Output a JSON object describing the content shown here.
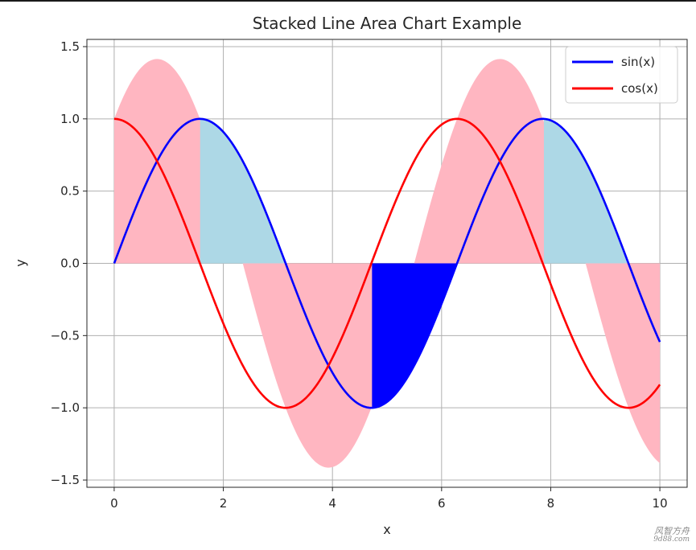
{
  "chart_data": {
    "type": "area",
    "title": "Stacked Line Area Chart Example",
    "xlabel": "x",
    "ylabel": "y",
    "xlim": [
      -0.5,
      10.5
    ],
    "ylim": [
      -1.55,
      1.55
    ],
    "x_range": [
      0,
      10
    ],
    "xticks": [
      "0",
      "2",
      "4",
      "6",
      "8",
      "10"
    ],
    "yticks": [
      "−1.5",
      "−1.0",
      "−0.5",
      "0.0",
      "0.5",
      "1.0",
      "1.5"
    ],
    "grid": true,
    "legend_position": "top-right",
    "series": [
      {
        "name": "sin(x)",
        "function": "sin(x)",
        "color": "#0000ff"
      },
      {
        "name": "cos(x)",
        "function": "cos(x)",
        "color": "#ff0000"
      }
    ],
    "fills": [
      {
        "between": "0 and sin(x)+cos(x)",
        "color": "#ffb6c1"
      },
      {
        "between": "sin(x) and 0",
        "where": "sin(x) > 0 and cos(x) < 0",
        "color": "#add8e6"
      },
      {
        "between": "sin(x) and 0",
        "where": "sin(x) < 0 and cos(x) > 0",
        "color": "#0000ff"
      }
    ]
  },
  "watermark": {
    "main": "风智方舟",
    "sub": "9d88.com"
  }
}
